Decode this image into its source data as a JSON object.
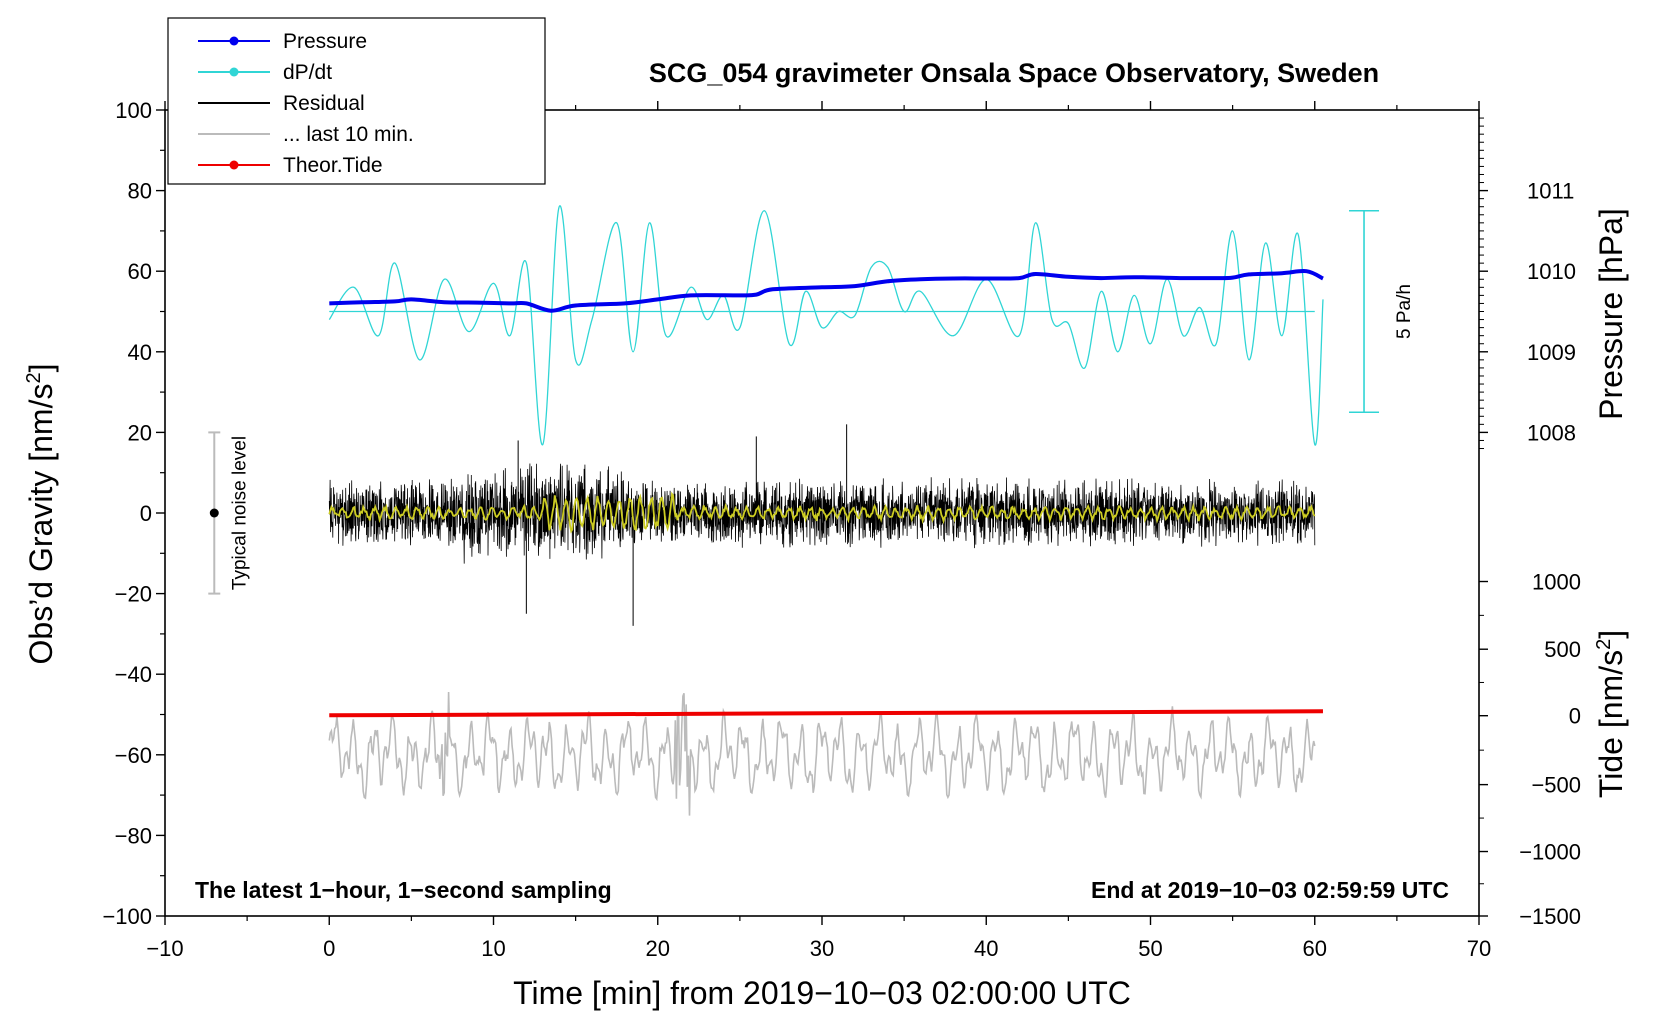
{
  "chart_data": {
    "type": "line",
    "title": "SCG_054 gravimeter Onsala Space Observatory, Sweden",
    "xlabel": "Time [min] from 2019−10−03 02:00:00 UTC",
    "ylabel_left": "Obs’d Gravity [nm/s",
    "ylabel_sup": "2",
    "ylabel_close": "]",
    "ylabel_right_pressure": "Pressure [hPa]",
    "ylabel_right_tide": "Tide [nm/s",
    "xlim": [
      -10,
      70
    ],
    "ylim": [
      -100,
      100
    ],
    "x_ticks": [
      "−10",
      "0",
      "10",
      "20",
      "30",
      "40",
      "50",
      "60",
      "70"
    ],
    "x_tick_values": [
      -10,
      0,
      10,
      20,
      30,
      40,
      50,
      60,
      70
    ],
    "y_ticks": [
      "−100",
      "−80",
      "−60",
      "−40",
      "−20",
      "0",
      "20",
      "40",
      "60",
      "80",
      "100"
    ],
    "y_tick_values": [
      -100,
      -80,
      -60,
      -40,
      -20,
      0,
      20,
      40,
      60,
      80,
      100
    ],
    "pressure_axis": {
      "ticks": [
        "1008",
        "1009",
        "1010",
        "1011"
      ],
      "tick_values": [
        1008,
        1009,
        1010,
        1011
      ],
      "gravity_equivalent": [
        20,
        40,
        60,
        80
      ]
    },
    "tide_axis": {
      "ticks": [
        "1000",
        "500",
        "0",
        "−500",
        "−1000",
        "−1500"
      ],
      "tick_values": [
        1000,
        500,
        0,
        -500,
        -1000,
        -1500
      ],
      "gravity_equivalent": [
        -17,
        -33.8,
        -50.3,
        -67.4,
        -84,
        -100
      ]
    },
    "legend": {
      "placement": "top-left",
      "entries": [
        {
          "label": "Pressure",
          "color": "#0000ee",
          "marker": true
        },
        {
          "label": "dP/dt",
          "color": "#30d5d5",
          "marker": true
        },
        {
          "label": "Residual",
          "color": "#000000",
          "marker": false
        },
        {
          "label": "... last 10 min.",
          "color": "#bbbbbb",
          "marker": false
        },
        {
          "label": "Theor.Tide",
          "color": "#ee0000",
          "marker": true
        }
      ]
    },
    "series": [
      {
        "name": "Pressure",
        "color": "#0000ee",
        "x": [
          0,
          2,
          4,
          5,
          7,
          9,
          11,
          12,
          13.5,
          15,
          18,
          20,
          22,
          25,
          26,
          27,
          30,
          32,
          34,
          36,
          38,
          40,
          42,
          43,
          45,
          47,
          49,
          52,
          54,
          55,
          56,
          58,
          59.5,
          60.5
        ],
        "y": [
          52,
          52.3,
          52.5,
          53,
          52.3,
          52.2,
          52,
          52,
          50.2,
          51.5,
          52,
          53,
          54,
          54,
          54.2,
          55.5,
          56,
          56.3,
          57.5,
          58,
          58.2,
          58.2,
          58.3,
          59.3,
          58.6,
          58.3,
          58.5,
          58.3,
          58.3,
          58.4,
          59.2,
          59.5,
          60,
          58.2
        ]
      },
      {
        "name": "dP/dt",
        "color": "#30d5d5",
        "baseline": 50,
        "x": [
          0,
          1.5,
          3,
          4,
          5.5,
          7,
          8.5,
          10,
          11,
          12,
          13,
          14,
          15,
          16,
          17.5,
          18.5,
          19.5,
          20.5,
          22,
          23,
          24,
          25,
          26.5,
          28,
          29,
          30,
          31,
          32,
          33,
          34,
          35,
          36,
          38,
          40,
          42,
          43,
          44,
          45,
          46,
          47,
          48,
          49,
          50,
          51,
          52,
          53,
          54,
          55,
          56,
          57,
          58,
          59,
          60,
          60.5
        ],
        "y": [
          48,
          56,
          44,
          62,
          38,
          58,
          45,
          57,
          44,
          62,
          17,
          76,
          38,
          48,
          72,
          40,
          72,
          44,
          56,
          48,
          54,
          46,
          75,
          42,
          55,
          46,
          50,
          49,
          61,
          61,
          50,
          55,
          44,
          58,
          44,
          72,
          48,
          47,
          36,
          55,
          40,
          54,
          42,
          58,
          44,
          51,
          42,
          70,
          38,
          67,
          44,
          69,
          17,
          53
        ]
      },
      {
        "name": "Residual",
        "color": "#000000",
        "x_range": [
          0,
          60
        ],
        "y_range_approx": [
          -28,
          22
        ]
      },
      {
        "name": "... last 10 min.",
        "color": "#bbbbbb",
        "x_range": [
          0,
          60
        ],
        "y_range_approx": [
          -77,
          -44
        ]
      },
      {
        "name": "Theor.Tide",
        "color": "#ee0000",
        "x": [
          0,
          60.5
        ],
        "y": [
          -50.2,
          -49.2
        ]
      },
      {
        "name": "Residual smoothed",
        "color": "#cccc22",
        "x_range": [
          0,
          60
        ],
        "y_range_approx": [
          -3,
          3
        ]
      }
    ],
    "annotations": {
      "left_note": "The latest 1−hour, 1−second sampling",
      "right_note": "End at 2019−10−03 02:59:59 UTC",
      "noise_label": "Typical noise level",
      "noise_bar": {
        "x": -7,
        "y_center": 0,
        "y_min": -20,
        "y_max": 20
      },
      "rate_label": "5 Pa/h",
      "rate_bar": {
        "x": 63,
        "y_min": 25,
        "y_max": 75
      }
    }
  }
}
